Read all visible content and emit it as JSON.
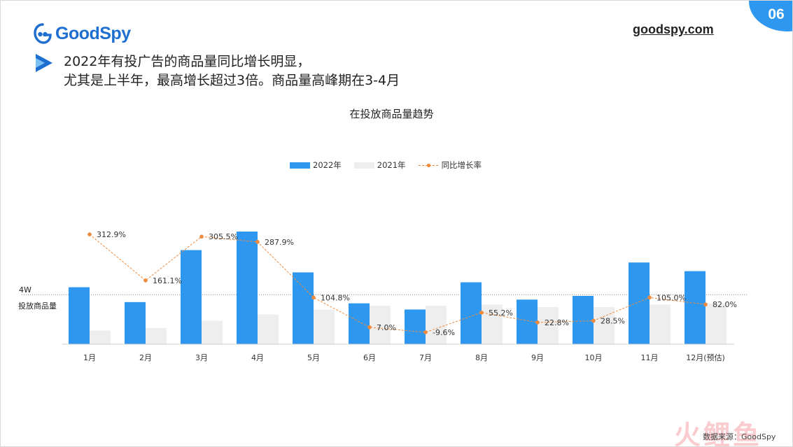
{
  "brand": {
    "name": "GoodSpy",
    "url": "goodspy.com",
    "accent": "#2e97ef",
    "logo_color": "#1f6fd1"
  },
  "page_number": "06",
  "headline": {
    "line1": "2022年有投广告的商品量同比增长明显，",
    "line2": "尤其是上半年，最高增长超过3倍。商品量高峰期在3-4月"
  },
  "source": "数据来源：GoodSpy",
  "watermark": "火鲤鱼",
  "chart_data": {
    "type": "bar",
    "title": "在投放商品量趋势",
    "categories": [
      "1月",
      "2月",
      "3月",
      "4月",
      "5月",
      "6月",
      "7月",
      "8月",
      "9月",
      "10月",
      "11月",
      "12月(预估)"
    ],
    "series": [
      {
        "name": "2022年",
        "type": "bar",
        "color": "#2e97ef",
        "values": [
          4.6,
          3.4,
          7.6,
          9.1,
          5.8,
          3.3,
          2.8,
          5.0,
          3.6,
          3.9,
          6.6,
          5.9
        ]
      },
      {
        "name": "2021年",
        "type": "bar",
        "color": "#eeeeee",
        "values": [
          1.1,
          1.3,
          1.9,
          2.4,
          2.8,
          3.1,
          3.1,
          3.2,
          3.0,
          3.0,
          3.2,
          3.3
        ]
      },
      {
        "name": "同比增长率",
        "type": "line",
        "color": "#f08a3c",
        "style": "dashed",
        "values": [
          312.9,
          161.1,
          305.5,
          287.9,
          104.8,
          7.0,
          -9.6,
          55.2,
          22.8,
          28.5,
          105.0,
          82.0
        ],
        "labels": [
          "312.9%",
          "161.1%",
          "305.5%",
          "287.9%",
          "104.8%",
          "7.0%",
          "-9.6%",
          "55.2%",
          "22.8%",
          "28.5%",
          "105.0%",
          "82.0%"
        ]
      }
    ],
    "reference_line": {
      "value": 4,
      "label_value": "4W",
      "label_name": "投放商品量"
    },
    "ylim": [
      0,
      9.1
    ],
    "legend": "top-center",
    "grid": false
  }
}
